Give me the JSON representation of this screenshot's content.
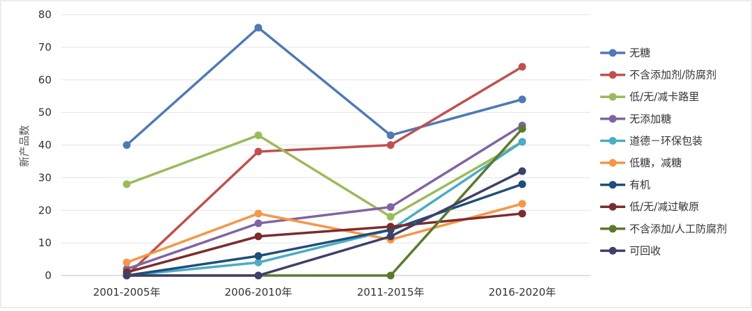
{
  "chart_data": {
    "type": "line",
    "title": "",
    "xlabel": "",
    "ylabel": "新产品数",
    "categories": [
      "2001-2005年",
      "2006-2010年",
      "2011-2015年",
      "2016-2020年"
    ],
    "ylim": [
      0,
      80
    ],
    "yticks": [
      0,
      10,
      20,
      30,
      40,
      50,
      60,
      70,
      80
    ],
    "grid": true,
    "legend_position": "right",
    "series": [
      {
        "name": "无糖",
        "color": "#4e7ab5",
        "values": [
          40,
          76,
          43,
          54
        ]
      },
      {
        "name": "不含添加剂/防腐剂",
        "color": "#c0504d",
        "values": [
          0,
          38,
          40,
          64
        ]
      },
      {
        "name": "低/无/减卡路里",
        "color": "#9bbb59",
        "values": [
          28,
          43,
          18,
          41
        ]
      },
      {
        "name": "无添加糖",
        "color": "#8064a2",
        "values": [
          2,
          16,
          21,
          46
        ]
      },
      {
        "name": "道德－环保包装",
        "color": "#4bacc6",
        "values": [
          0,
          4,
          14,
          41
        ]
      },
      {
        "name": "低糖，减糖",
        "color": "#f79646",
        "values": [
          4,
          19,
          11,
          22
        ]
      },
      {
        "name": "有机",
        "color": "#1f4e79",
        "values": [
          0,
          6,
          14,
          28
        ]
      },
      {
        "name": "低/无/减过敏原",
        "color": "#7b2c2c",
        "values": [
          1,
          12,
          15,
          19
        ]
      },
      {
        "name": "不含添加/人工防腐剂",
        "color": "#5a7a2e",
        "values": [
          0,
          0,
          0,
          45
        ]
      },
      {
        "name": "可回收",
        "color": "#3f3f6b",
        "values": [
          0,
          0,
          12,
          32
        ]
      }
    ]
  }
}
